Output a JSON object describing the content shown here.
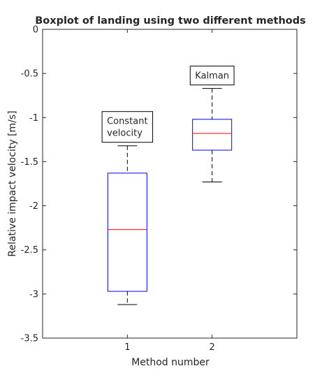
{
  "chart_data": {
    "type": "box",
    "title": "Boxplot of landing using two different methods",
    "xlabel": "Method number",
    "ylabel": "Relative impact velocity [m/s]",
    "categories": [
      "1",
      "2"
    ],
    "x_ticks": [
      "1",
      "2"
    ],
    "y_ticks": [
      "0",
      "-0.5",
      "-1",
      "-1.5",
      "-2",
      "-2.5",
      "-3",
      "-3.5"
    ],
    "ylim": [
      -3.5,
      0
    ],
    "y_tick_values": [
      0,
      -0.5,
      -1,
      -1.5,
      -2,
      -2.5,
      -3,
      -3.5
    ],
    "boxes": [
      {
        "category": "1",
        "whisker_low": -3.12,
        "q1": -2.97,
        "median": -2.27,
        "q3": -1.63,
        "whisker_high": -1.32
      },
      {
        "category": "2",
        "whisker_low": -1.73,
        "q1": -1.37,
        "median": -1.18,
        "q3": -1.02,
        "whisker_high": -0.67
      }
    ],
    "annotations": [
      {
        "lines": [
          "Constant",
          "velocity"
        ],
        "category": "1"
      },
      {
        "lines": [
          "Kalman"
        ],
        "category": "2"
      }
    ],
    "colors": {
      "box": "#0000ff",
      "median": "#ff0000",
      "whisker": "#000000",
      "axes": "#262626"
    },
    "grid": false
  }
}
